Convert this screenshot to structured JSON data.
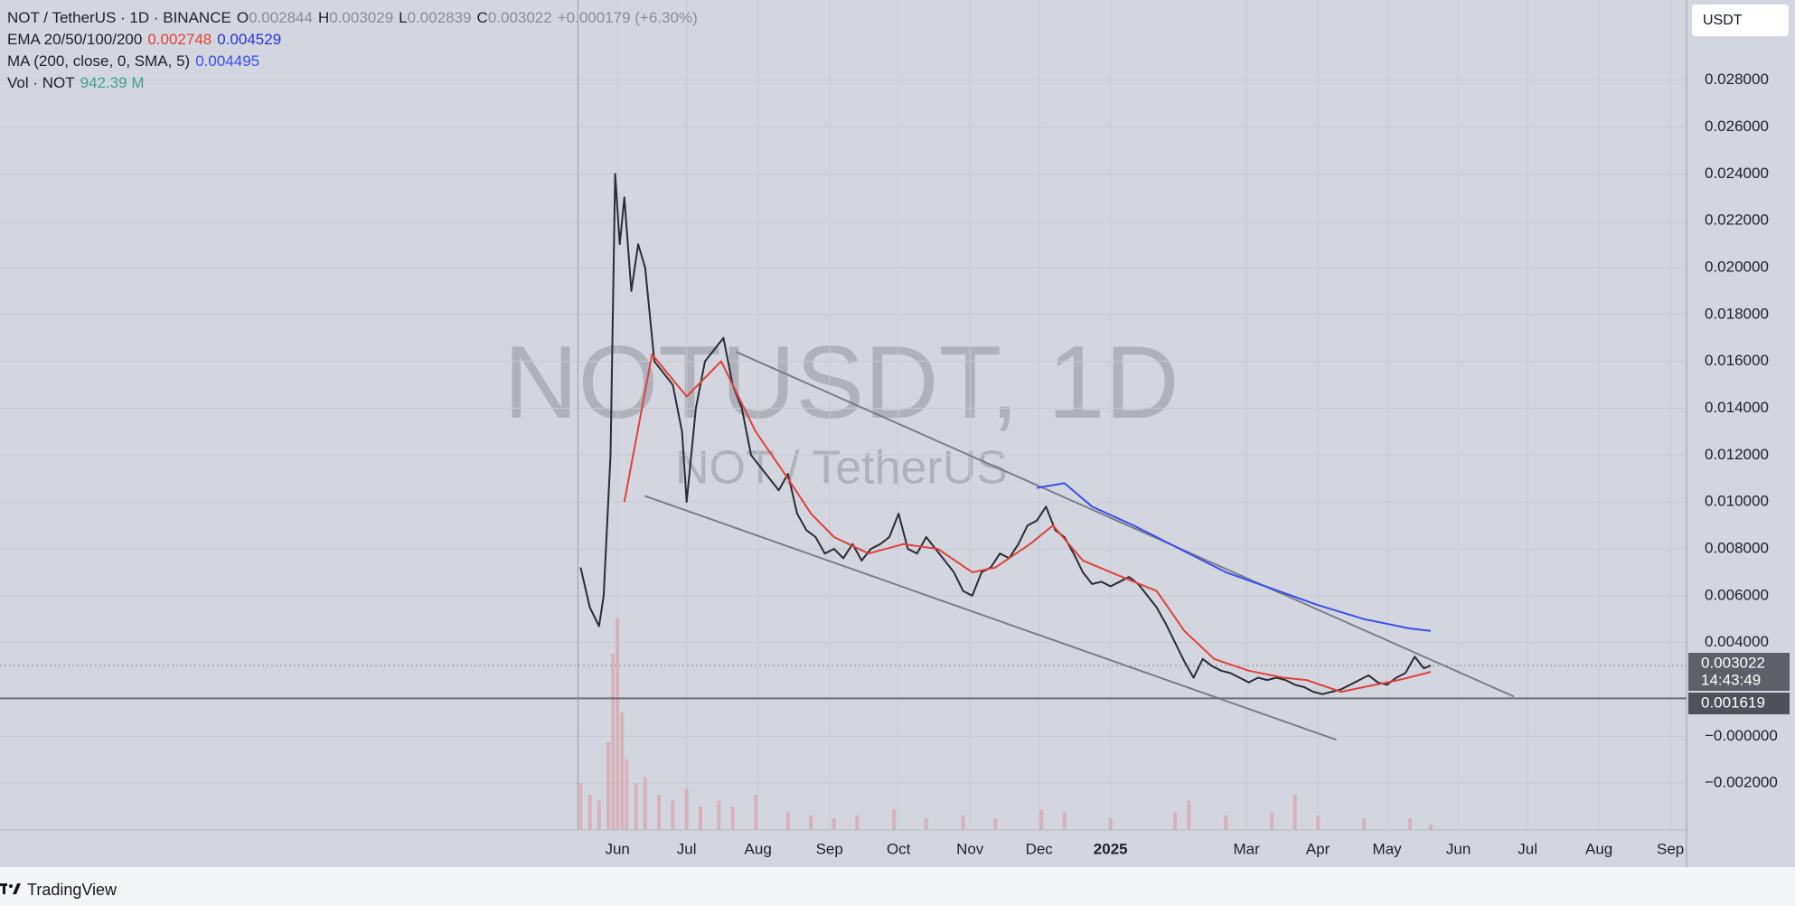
{
  "chart_data": {
    "type": "line",
    "header": {
      "O_label": "O",
      "open": 0.002844,
      "H_label": "H",
      "high": 0.003029,
      "L_label": "L",
      "low": 0.002839,
      "C_label": "C",
      "close": 0.003022,
      "change": "+0.000179 (+6.30%)",
      "ema_values": [
        0.002748,
        0.004529
      ],
      "ma_value": 0.004495,
      "vol_name": "Vol · NOT",
      "vol_value": "942.39 M"
    },
    "watermark": "NOTUSDT, 1D",
    "watermark_sub": "NOT / TetherUS",
    "currency_button": "USDT",
    "brand": "TradingView",
    "xlim": [
      -252,
      480
    ],
    "ylim": [
      -0.004,
      0.03142
    ],
    "xticks": [
      {
        "value": 16,
        "label": "Jun"
      },
      {
        "value": 46,
        "label": "Jul"
      },
      {
        "value": 77,
        "label": "Aug"
      },
      {
        "value": 108,
        "label": "Sep"
      },
      {
        "value": 138,
        "label": "Oct"
      },
      {
        "value": 169,
        "label": "Nov"
      },
      {
        "value": 199,
        "label": "Dec"
      },
      {
        "value": 230,
        "label": "2025",
        "bold": true
      },
      {
        "value": 289,
        "label": "Mar"
      },
      {
        "value": 320,
        "label": "Apr"
      },
      {
        "value": 350,
        "label": "May"
      },
      {
        "value": 381,
        "label": "Jun"
      },
      {
        "value": 411,
        "label": "Jul"
      },
      {
        "value": 442,
        "label": "Aug"
      },
      {
        "value": 473,
        "label": "Sep"
      }
    ],
    "yticks": [
      {
        "value": 0.028,
        "label": "0.028000"
      },
      {
        "value": 0.026,
        "label": "0.026000"
      },
      {
        "value": 0.024,
        "label": "0.024000"
      },
      {
        "value": 0.022,
        "label": "0.022000"
      },
      {
        "value": 0.02,
        "label": "0.020000"
      },
      {
        "value": 0.018,
        "label": "0.018000"
      },
      {
        "value": 0.016,
        "label": "0.016000"
      },
      {
        "value": 0.014,
        "label": "0.014000"
      },
      {
        "value": 0.012,
        "label": "0.012000"
      },
      {
        "value": 0.01,
        "label": "0.010000"
      },
      {
        "value": 0.008,
        "label": "0.008000"
      },
      {
        "value": 0.006,
        "label": "0.006000"
      },
      {
        "value": 0.004,
        "label": "0.004000"
      },
      {
        "value": 0,
        "label": "−0.000000"
      },
      {
        "value": -0.002,
        "label": "−0.002000"
      }
    ],
    "grid": true,
    "series": [
      {
        "name": "NOT / TetherUS · 1D · BINANCE",
        "color": "#2a2d35",
        "x": [
          0,
          4,
          8,
          10,
          13,
          15,
          17,
          19,
          22,
          25,
          28,
          32,
          36,
          40,
          44,
          46,
          50,
          54,
          58,
          62,
          66,
          70,
          74,
          78,
          82,
          86,
          90,
          94,
          98,
          102,
          106,
          110,
          114,
          118,
          122,
          126,
          130,
          134,
          138,
          142,
          146,
          150,
          154,
          158,
          162,
          166,
          170,
          174,
          178,
          182,
          186,
          190,
          194,
          198,
          202,
          206,
          210,
          214,
          218,
          222,
          226,
          230,
          234,
          238,
          242,
          246,
          250,
          254,
          258,
          262,
          266,
          270,
          274,
          278,
          282,
          286,
          290,
          294,
          298,
          302,
          306,
          310,
          314,
          318,
          322,
          326,
          330,
          334,
          338,
          342,
          346,
          350,
          354,
          358,
          362,
          366,
          369
        ],
        "values": [
          0.0072,
          0.0055,
          0.0047,
          0.006,
          0.012,
          0.024,
          0.021,
          0.023,
          0.019,
          0.021,
          0.02,
          0.016,
          0.0155,
          0.015,
          0.013,
          0.01,
          0.014,
          0.016,
          0.0165,
          0.017,
          0.015,
          0.014,
          0.012,
          0.0115,
          0.011,
          0.0105,
          0.0112,
          0.0095,
          0.0088,
          0.0085,
          0.0078,
          0.008,
          0.0076,
          0.0082,
          0.0075,
          0.008,
          0.0082,
          0.0085,
          0.0095,
          0.008,
          0.0078,
          0.0085,
          0.008,
          0.0075,
          0.007,
          0.0062,
          0.006,
          0.007,
          0.0072,
          0.0078,
          0.0076,
          0.0082,
          0.009,
          0.0092,
          0.0098,
          0.0088,
          0.0085,
          0.0078,
          0.007,
          0.0065,
          0.0066,
          0.0064,
          0.0066,
          0.0068,
          0.0065,
          0.006,
          0.0055,
          0.0048,
          0.004,
          0.0032,
          0.0025,
          0.0033,
          0.003,
          0.0028,
          0.0027,
          0.0025,
          0.0023,
          0.0025,
          0.0024,
          0.0025,
          0.0024,
          0.0022,
          0.0021,
          0.0019,
          0.0018,
          0.0019,
          0.002,
          0.0022,
          0.0024,
          0.0026,
          0.0023,
          0.0022,
          0.0025,
          0.0027,
          0.0034,
          0.0029,
          0.003022
        ]
      },
      {
        "name": "EMA 20/50/100/200",
        "color": "#e0413c",
        "x": [
          19,
          31,
          46,
          61,
          76,
          90,
          100,
          110,
          125,
          140,
          155,
          170,
          180,
          195,
          205,
          218,
          235,
          250,
          262,
          275,
          290,
          305,
          315,
          330,
          340,
          355,
          369
        ],
        "values": [
          0.01,
          0.0163,
          0.0145,
          0.016,
          0.013,
          0.011,
          0.0095,
          0.0085,
          0.0078,
          0.0082,
          0.008,
          0.007,
          0.0072,
          0.0082,
          0.009,
          0.0075,
          0.0068,
          0.0062,
          0.0045,
          0.0033,
          0.0028,
          0.0025,
          0.0024,
          0.0019,
          0.0021,
          0.0024,
          0.00275
        ]
      },
      {
        "name": "MA (200, close, 0, SMA, 5)",
        "color": "#3a4ff0",
        "x": [
          198,
          210,
          222,
          240,
          260,
          280,
          300,
          320,
          340,
          360,
          369
        ],
        "values": [
          0.0106,
          0.0108,
          0.0098,
          0.009,
          0.008,
          0.007,
          0.0063,
          0.0056,
          0.005,
          0.0046,
          0.0045
        ]
      }
    ],
    "trendlines": {
      "color": "#7b7e87",
      "lines": [
        {
          "x": [
            67.6,
            405
          ],
          "values": [
            0.0164,
            0.0017
          ]
        },
        {
          "x": [
            27.8,
            328
          ],
          "values": [
            0.01026,
            -0.00015
          ]
        }
      ]
    },
    "last_price": {
      "value": 0.003022,
      "timer": "14:43:49"
    },
    "hline": {
      "value": 0.001619
    },
    "volume": {
      "color": "#d7a9b2",
      "vlim": [
        0,
        40000
      ],
      "x": [
        0,
        4,
        8,
        12,
        14,
        16,
        18,
        20,
        24,
        28,
        34,
        40,
        46,
        52,
        60,
        66,
        76,
        90,
        100,
        110,
        120,
        136,
        150,
        166,
        180,
        200,
        210,
        230,
        258,
        264,
        280,
        300,
        310,
        320,
        340,
        360,
        369
      ],
      "values": [
        8000,
        6000,
        5000,
        15000,
        30000,
        36000,
        20000,
        12000,
        8000,
        9000,
        6000,
        5000,
        7000,
        4000,
        5000,
        4000,
        6000,
        3000,
        2500,
        2000,
        2500,
        3500,
        2000,
        2500,
        2000,
        3500,
        3000,
        2000,
        3000,
        5000,
        2500,
        3000,
        6000,
        2500,
        2000,
        2000,
        942.39
      ]
    }
  }
}
